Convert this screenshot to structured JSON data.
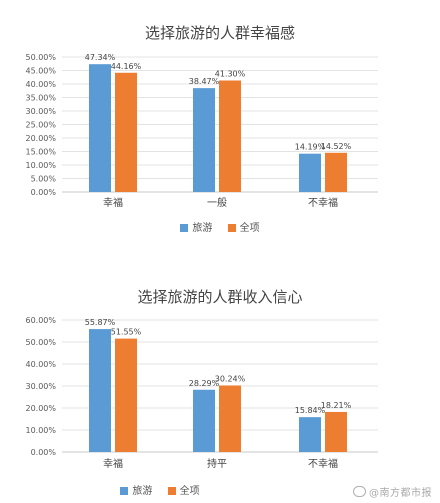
{
  "chart_data": [
    {
      "type": "bar",
      "title": "选择旅游的人群幸福感",
      "categories": [
        "幸福",
        "一般",
        "不幸福"
      ],
      "series": [
        {
          "name": "旅游",
          "values": [
            47.34,
            38.47,
            14.19
          ],
          "labels": [
            "47.34%",
            "38.47%",
            "14.19%"
          ]
        },
        {
          "name": "全项",
          "values": [
            44.16,
            41.3,
            14.52
          ],
          "labels": [
            "44.16%",
            "41.30%",
            "14.52%"
          ]
        }
      ],
      "yticks": [
        "0.00%",
        "5.00%",
        "10.00%",
        "15.00%",
        "20.00%",
        "25.00%",
        "30.00%",
        "35.00%",
        "40.00%",
        "45.00%",
        "50.00%"
      ],
      "ylim": [
        0,
        50
      ],
      "grid": true,
      "legend": "bottom"
    },
    {
      "type": "bar",
      "title": "选择旅游的人群收入信心",
      "categories": [
        "幸福",
        "持平",
        "不幸福"
      ],
      "series": [
        {
          "name": "旅游",
          "values": [
            55.87,
            28.29,
            15.84
          ],
          "labels": [
            "55.87%",
            "28.29%",
            "15.84%"
          ]
        },
        {
          "name": "全项",
          "values": [
            51.55,
            30.24,
            18.21
          ],
          "labels": [
            "51.55%",
            "30.24%",
            "18.21%"
          ]
        }
      ],
      "yticks": [
        "0.00%",
        "10.00%",
        "20.00%",
        "30.00%",
        "40.00%",
        "50.00%",
        "60.00%"
      ],
      "ylim": [
        0,
        60
      ],
      "grid": true,
      "legend": "bottom"
    }
  ],
  "colors": {
    "旅游": "#5b9bd5",
    "全项": "#ed7d31",
    "grid": "#e3e3e3",
    "axis_text": "#595959"
  },
  "watermark": "@南方都市报"
}
